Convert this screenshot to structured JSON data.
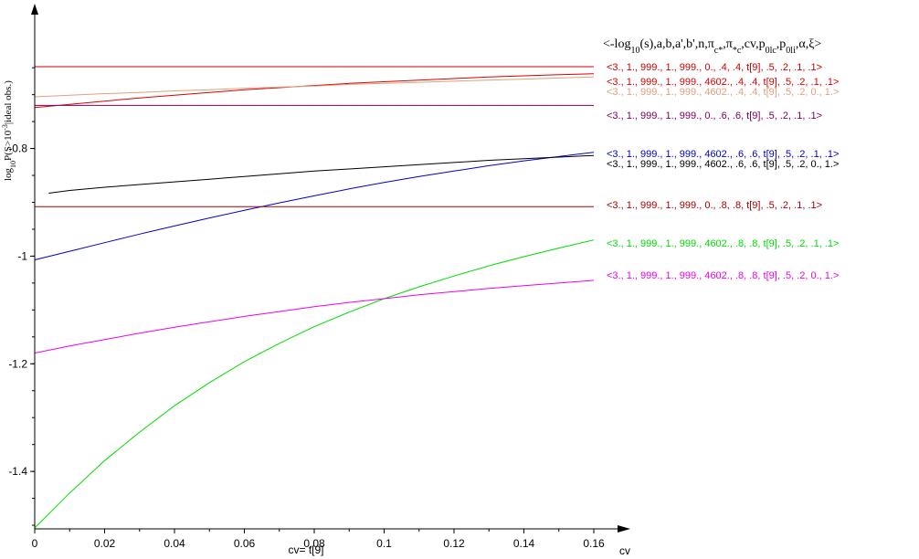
{
  "chart_data": {
    "type": "line",
    "xlabel": "cv",
    "xcaption": "cv= t[9]",
    "ylabel": "log10P(S>10^-3|ideal obs.)",
    "xlim": [
      0,
      0.16
    ],
    "ylim": [
      -1.52,
      -0.63
    ],
    "xticks": [
      "0",
      "0.02",
      "0.04",
      "0.06",
      "0.08",
      "0.1",
      "0.12",
      "0.14",
      "0.16"
    ],
    "xtick_values": [
      0,
      0.02,
      0.04,
      0.06,
      0.08,
      0.1,
      0.12,
      0.14,
      0.16
    ],
    "yticks": [
      "-0.8",
      "-1",
      "-1.2",
      "-1.4"
    ],
    "ytick_values": [
      -0.8,
      -1.0,
      -1.2,
      -1.4
    ],
    "legend_header": "<-log10(s),a,b,a',b',n,πc*,π*c,cv,p0lc,p0li,α,ξ>",
    "x": [
      0,
      0.01,
      0.02,
      0.03,
      0.04,
      0.05,
      0.06,
      0.07,
      0.08,
      0.09,
      0.1,
      0.11,
      0.12,
      0.13,
      0.14,
      0.15,
      0.16
    ],
    "series": [
      {
        "name": "<3., 1., 999., 1., 999., 0., .4, .4, t[9], .5, .2, .1, .1>",
        "color": "#cc0000",
        "x_start": 0,
        "values": [
          -0.648,
          -0.648,
          -0.648,
          -0.648,
          -0.648,
          -0.648,
          -0.648,
          -0.648,
          -0.648,
          -0.648,
          -0.648,
          -0.648,
          -0.648,
          -0.648,
          -0.648,
          -0.648,
          -0.648
        ]
      },
      {
        "name": "<3., 1., 999., 1., 999., 4602., .4, .4, t[9], .5, .2, .1, .1>",
        "color": "#dd0000",
        "x_start": 0,
        "values": [
          -0.724,
          -0.718,
          -0.712,
          -0.706,
          -0.701,
          -0.696,
          -0.691,
          -0.687,
          -0.683,
          -0.679,
          -0.676,
          -0.673,
          -0.67,
          -0.667,
          -0.665,
          -0.663,
          -0.661
        ]
      },
      {
        "name": "<3., 1., 999., 1., 999., 4602., .4, .4, t[9], .5, .2, 0., 1.>",
        "color": "#e0a080",
        "x_start": 0,
        "values": [
          -0.704,
          -0.701,
          -0.698,
          -0.696,
          -0.693,
          -0.691,
          -0.688,
          -0.686,
          -0.684,
          -0.681,
          -0.679,
          -0.677,
          -0.675,
          -0.673,
          -0.671,
          -0.669,
          -0.667
        ]
      },
      {
        "name": "<3., 1., 999., 1., 999., 0., .6, .6, t[9], .5, .2, .1, .1>",
        "color": "#800060",
        "x_start": 0,
        "values": [
          -0.72,
          -0.72,
          -0.72,
          -0.72,
          -0.72,
          -0.72,
          -0.72,
          -0.72,
          -0.72,
          -0.72,
          -0.72,
          -0.72,
          -0.72,
          -0.72,
          -0.72,
          -0.72,
          -0.72
        ]
      },
      {
        "name": "<3., 1., 999., 1., 999., 4602., .6, .6, t[9], .5, .2, .1, .1>",
        "color": "#0000cc",
        "x_start": 0,
        "values": [
          -1.007,
          -0.991,
          -0.975,
          -0.959,
          -0.944,
          -0.929,
          -0.915,
          -0.901,
          -0.888,
          -0.875,
          -0.863,
          -0.852,
          -0.842,
          -0.832,
          -0.823,
          -0.815,
          -0.807
        ]
      },
      {
        "name": "<3., 1., 999., 1., 999., 4602., .6, .6, t[9], .5, .2, 0., 1.>",
        "color": "#000000",
        "x_start": 0.004,
        "values": [
          -0.883,
          -0.878,
          -0.872,
          -0.867,
          -0.862,
          -0.857,
          -0.852,
          -0.847,
          -0.842,
          -0.838,
          -0.834,
          -0.83,
          -0.826,
          -0.822,
          -0.819,
          -0.816,
          -0.813
        ]
      },
      {
        "name": "<3., 1., 999., 1., 999., 0., .8, .8, t[9], .5, .2, .1, .1>",
        "color": "#aa0000",
        "x_start": 0,
        "values": [
          -0.908,
          -0.908,
          -0.908,
          -0.908,
          -0.908,
          -0.908,
          -0.908,
          -0.908,
          -0.908,
          -0.908,
          -0.908,
          -0.908,
          -0.908,
          -0.908,
          -0.908,
          -0.908,
          -0.908
        ]
      },
      {
        "name": "<3., 1., 999., 1., 999., 4602., .8, .8, t[9], .5, .2, .1, .1>",
        "color": "#00dd00",
        "x_start": 0,
        "values": [
          -1.505,
          -1.44,
          -1.38,
          -1.327,
          -1.278,
          -1.235,
          -1.196,
          -1.162,
          -1.131,
          -1.104,
          -1.079,
          -1.057,
          -1.037,
          -1.018,
          -1.001,
          -0.985,
          -0.97
        ]
      },
      {
        "name": "<3., 1., 999., 1., 999., 4602., .8, .8, t[9], .5, .2, 0., 1.>",
        "color": "#ee00ee",
        "x_start": 0,
        "values": [
          -1.18,
          -1.167,
          -1.155,
          -1.143,
          -1.132,
          -1.122,
          -1.112,
          -1.103,
          -1.094,
          -1.086,
          -1.079,
          -1.072,
          -1.066,
          -1.06,
          -1.055,
          -1.05,
          -1.045
        ]
      }
    ]
  }
}
